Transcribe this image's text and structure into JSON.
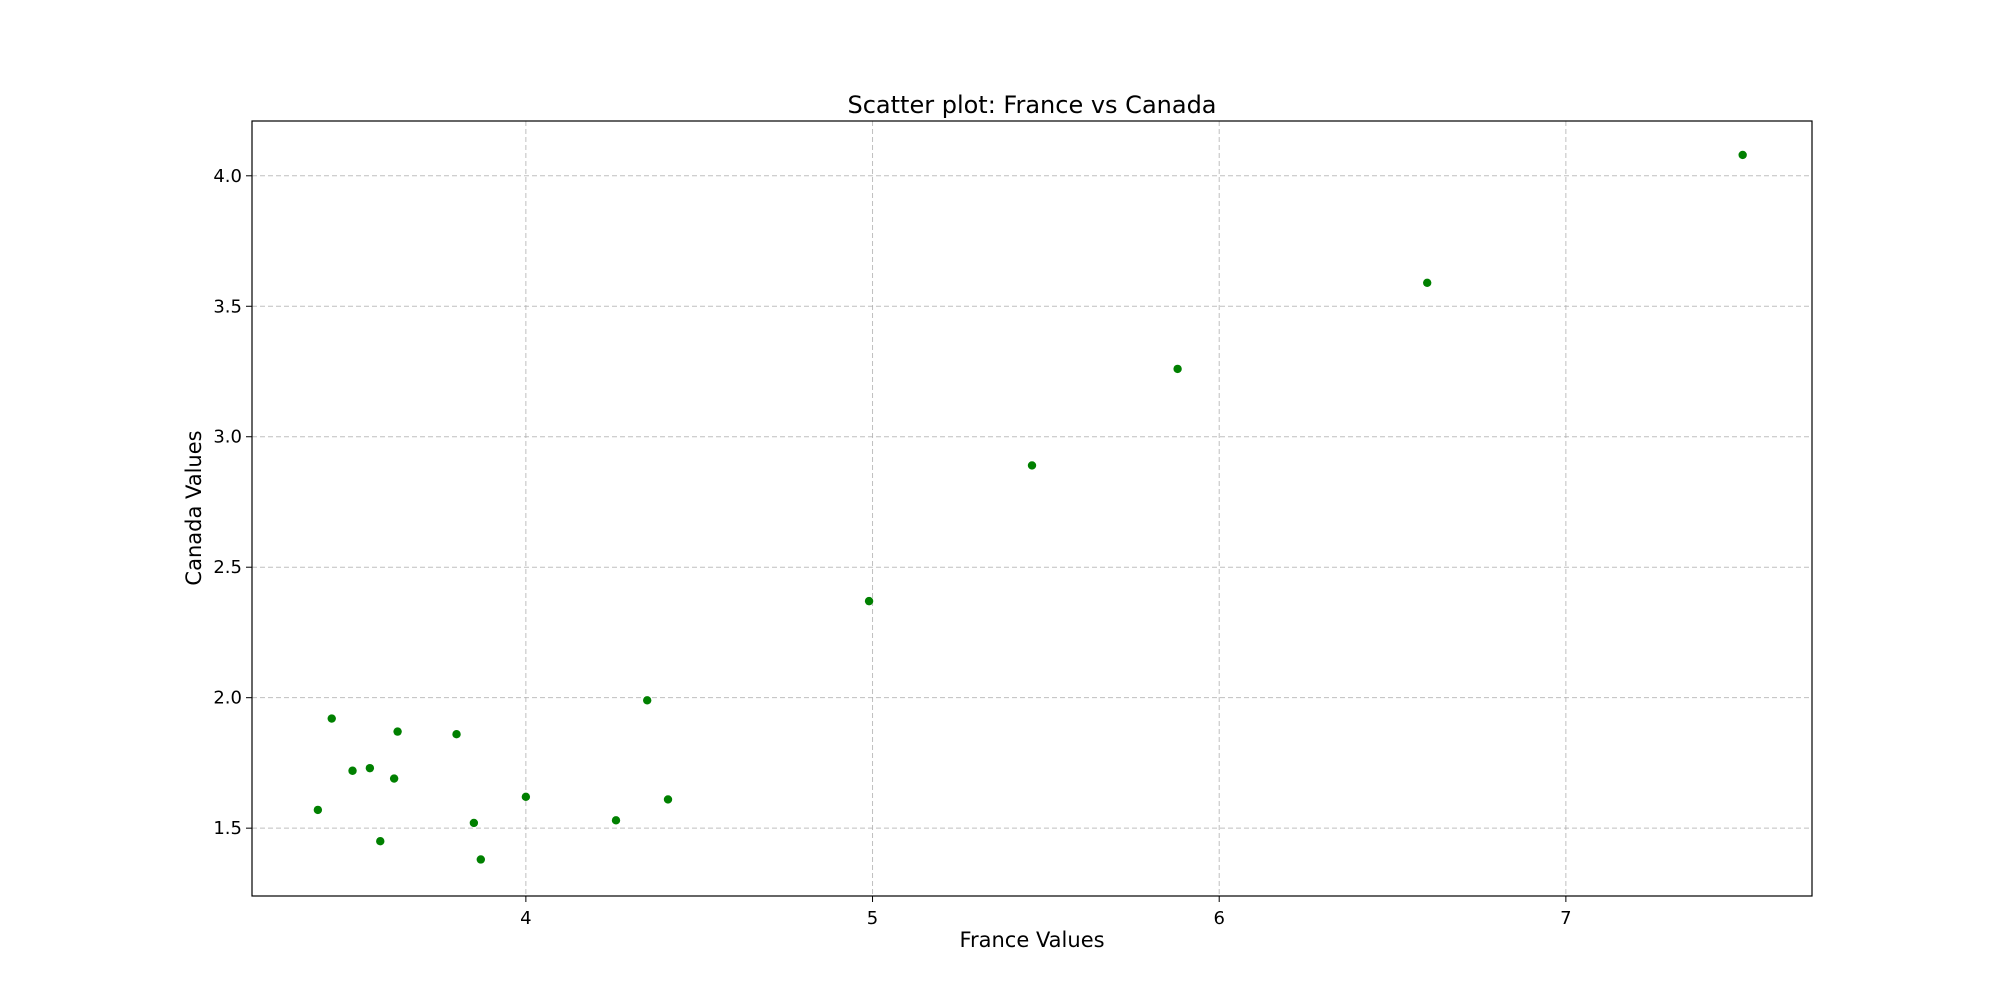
{
  "chart_data": {
    "type": "scatter",
    "title": "Scatter plot: France vs Canada",
    "xlabel": "France Values",
    "ylabel": "Canada Values",
    "xlim": [
      3.21,
      7.71
    ],
    "ylim": [
      1.24,
      4.21
    ],
    "x_ticks": [
      4,
      5,
      6,
      7
    ],
    "x_tick_labels": [
      "4",
      "5",
      "6",
      "7"
    ],
    "y_ticks": [
      1.5,
      2.0,
      2.5,
      3.0,
      3.5,
      4.0
    ],
    "y_tick_labels": [
      "1.5",
      "2.0",
      "2.5",
      "3.0",
      "3.5",
      "4.0"
    ],
    "grid": true,
    "marker_color": "#008000",
    "series": [
      {
        "points": [
          {
            "x": 3.4,
            "y": 1.57
          },
          {
            "x": 3.44,
            "y": 1.92
          },
          {
            "x": 3.5,
            "y": 1.72
          },
          {
            "x": 3.55,
            "y": 1.73
          },
          {
            "x": 3.58,
            "y": 1.45
          },
          {
            "x": 3.62,
            "y": 1.69
          },
          {
            "x": 3.63,
            "y": 1.87
          },
          {
            "x": 3.8,
            "y": 1.86
          },
          {
            "x": 3.85,
            "y": 1.52
          },
          {
            "x": 3.87,
            "y": 1.38
          },
          {
            "x": 4.0,
            "y": 1.62
          },
          {
            "x": 4.26,
            "y": 1.53
          },
          {
            "x": 4.35,
            "y": 1.99
          },
          {
            "x": 4.41,
            "y": 1.61
          },
          {
            "x": 4.99,
            "y": 2.37
          },
          {
            "x": 5.46,
            "y": 2.89
          },
          {
            "x": 5.88,
            "y": 3.26
          },
          {
            "x": 6.6,
            "y": 3.59
          },
          {
            "x": 7.51,
            "y": 4.08
          }
        ]
      }
    ]
  }
}
